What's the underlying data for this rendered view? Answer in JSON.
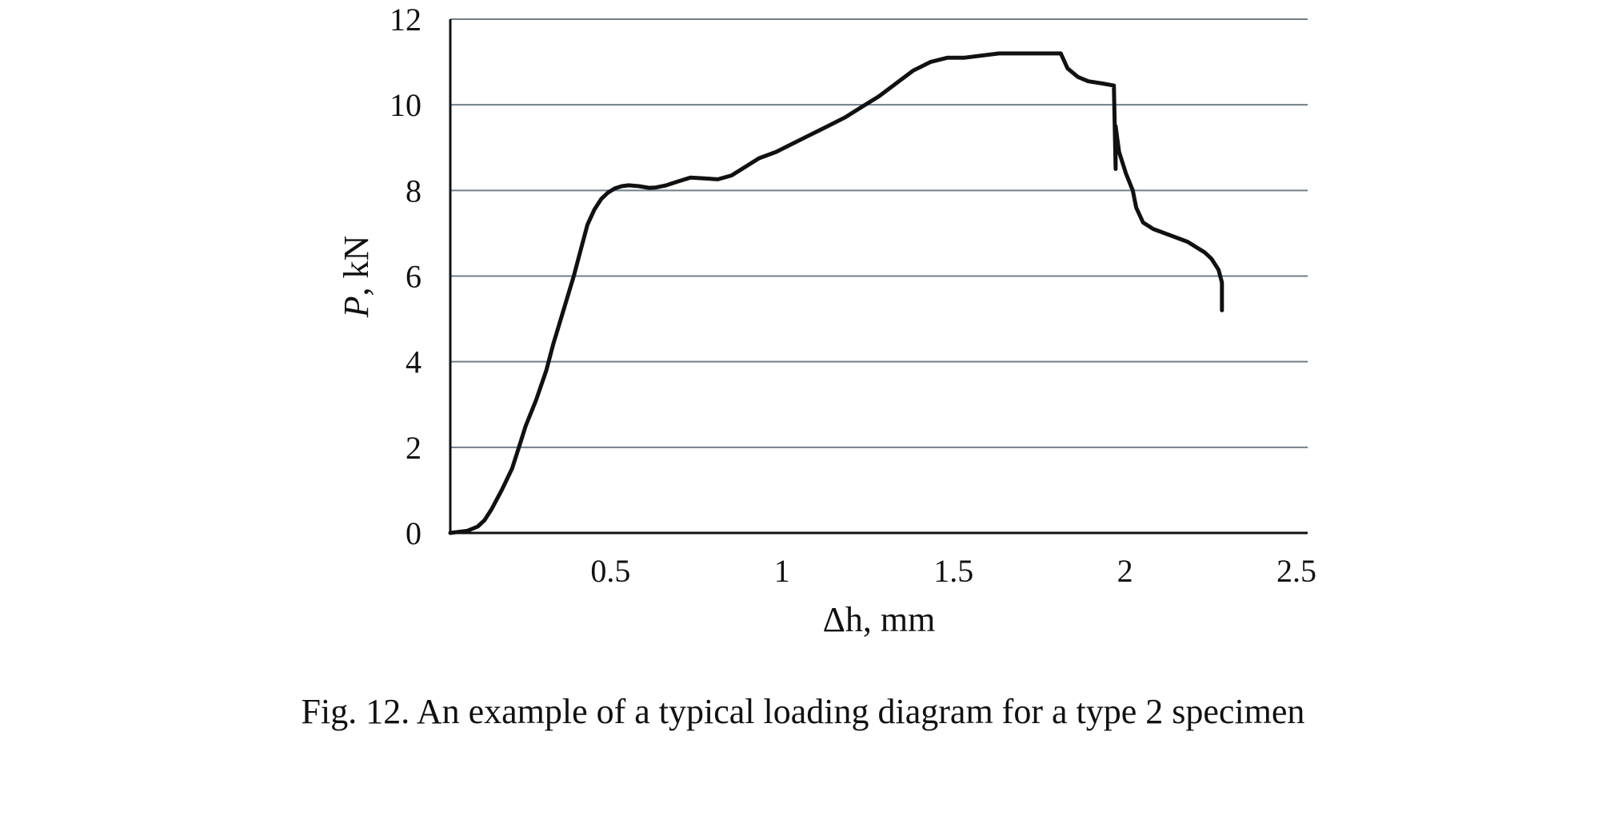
{
  "figure": {
    "caption": "Fig. 12. An example of a typical loading diagram for a type 2 specimen"
  },
  "chart_data": {
    "type": "line",
    "title": "",
    "xlabel": "Δh, mm",
    "ylabel_symbol": "P",
    "ylabel_unit": ", kN",
    "xlim": [
      0,
      2.5
    ],
    "ylim": [
      0,
      12
    ],
    "x_ticks": [
      {
        "value": 0.5,
        "label": "0.5"
      },
      {
        "value": 1,
        "label": "1"
      },
      {
        "value": 1.5,
        "label": "1.5"
      },
      {
        "value": 2,
        "label": "2"
      },
      {
        "value": 2.5,
        "label": "2.5"
      }
    ],
    "y_ticks": [
      {
        "value": 0,
        "label": "0"
      },
      {
        "value": 2,
        "label": "2"
      },
      {
        "value": 4,
        "label": "4"
      },
      {
        "value": 6,
        "label": "6"
      },
      {
        "value": 8,
        "label": "8"
      },
      {
        "value": 10,
        "label": "10"
      },
      {
        "value": 12,
        "label": "12"
      }
    ],
    "grid": "horizontal",
    "gridline_color": "#6f7f88",
    "line_color": "#111111",
    "series": [
      {
        "x": [
          0.0,
          0.05,
          0.08,
          0.1,
          0.12,
          0.15,
          0.18,
          0.2,
          0.22,
          0.25,
          0.28,
          0.3,
          0.33,
          0.36,
          0.38,
          0.4,
          0.42,
          0.44,
          0.46,
          0.48,
          0.5,
          0.52,
          0.55,
          0.58,
          0.6,
          0.63,
          0.66,
          0.7,
          0.74,
          0.78,
          0.82,
          0.86,
          0.9,
          0.95,
          1.0,
          1.05,
          1.1,
          1.15,
          1.2,
          1.25,
          1.3,
          1.35,
          1.4,
          1.45,
          1.5,
          1.55,
          1.6,
          1.65,
          1.7,
          1.75,
          1.78,
          1.8,
          1.83,
          1.86,
          1.9,
          1.935,
          1.94,
          1.94,
          1.945,
          1.95,
          1.97,
          1.99,
          2.0,
          2.02,
          2.05,
          2.1,
          2.15,
          2.2,
          2.22,
          2.24,
          2.25,
          2.25
        ],
        "y": [
          0.0,
          0.05,
          0.15,
          0.3,
          0.55,
          1.0,
          1.5,
          2.0,
          2.5,
          3.1,
          3.8,
          4.4,
          5.2,
          6.0,
          6.6,
          7.2,
          7.55,
          7.8,
          7.95,
          8.05,
          8.1,
          8.12,
          8.1,
          8.06,
          8.07,
          8.12,
          8.2,
          8.3,
          8.28,
          8.26,
          8.35,
          8.55,
          8.75,
          8.9,
          9.1,
          9.3,
          9.5,
          9.7,
          9.95,
          10.2,
          10.5,
          10.8,
          11.0,
          11.1,
          11.1,
          11.15,
          11.2,
          11.2,
          11.2,
          11.2,
          11.2,
          10.85,
          10.65,
          10.55,
          10.5,
          10.45,
          8.5,
          9.5,
          9.2,
          8.9,
          8.4,
          8.0,
          7.6,
          7.25,
          7.1,
          6.95,
          6.8,
          6.55,
          6.4,
          6.15,
          5.85,
          5.2
        ]
      }
    ]
  }
}
